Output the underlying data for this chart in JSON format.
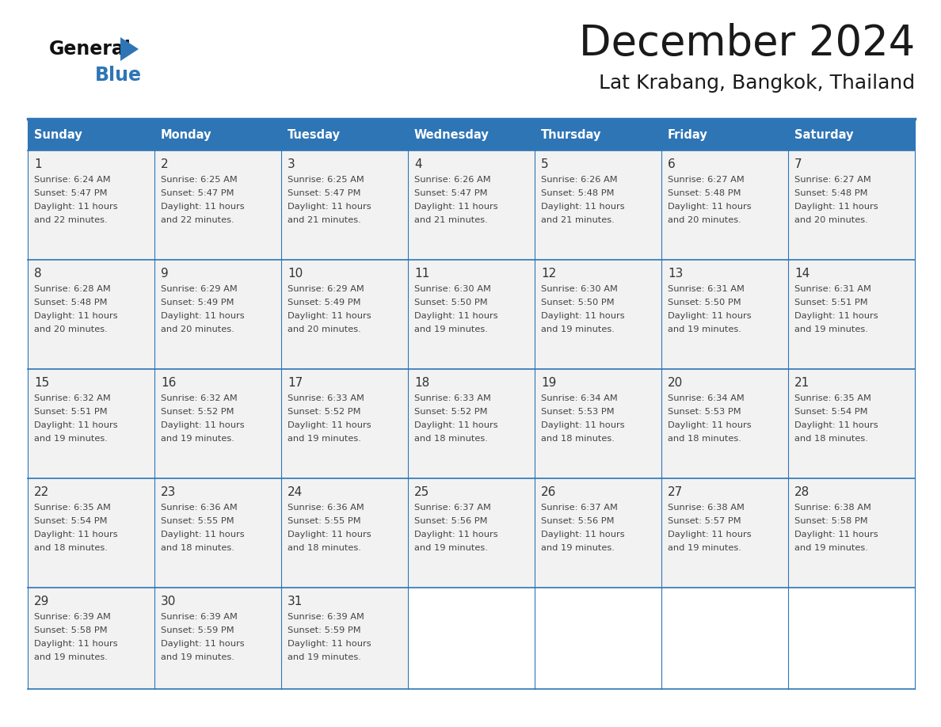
{
  "title": "December 2024",
  "subtitle": "Lat Krabang, Bangkok, Thailand",
  "header_bg": "#2E75B6",
  "header_text_color": "#FFFFFF",
  "cell_bg": "#F2F2F2",
  "border_color": "#2E75B6",
  "text_color": "#333333",
  "days_of_week": [
    "Sunday",
    "Monday",
    "Tuesday",
    "Wednesday",
    "Thursday",
    "Friday",
    "Saturday"
  ],
  "calendar_data": [
    [
      {
        "day": 1,
        "sunrise": "6:24 AM",
        "sunset": "5:47 PM",
        "daylight": "11 hours and 22 minutes."
      },
      {
        "day": 2,
        "sunrise": "6:25 AM",
        "sunset": "5:47 PM",
        "daylight": "11 hours and 22 minutes."
      },
      {
        "day": 3,
        "sunrise": "6:25 AM",
        "sunset": "5:47 PM",
        "daylight": "11 hours and 21 minutes."
      },
      {
        "day": 4,
        "sunrise": "6:26 AM",
        "sunset": "5:47 PM",
        "daylight": "11 hours and 21 minutes."
      },
      {
        "day": 5,
        "sunrise": "6:26 AM",
        "sunset": "5:48 PM",
        "daylight": "11 hours and 21 minutes."
      },
      {
        "day": 6,
        "sunrise": "6:27 AM",
        "sunset": "5:48 PM",
        "daylight": "11 hours and 20 minutes."
      },
      {
        "day": 7,
        "sunrise": "6:27 AM",
        "sunset": "5:48 PM",
        "daylight": "11 hours and 20 minutes."
      }
    ],
    [
      {
        "day": 8,
        "sunrise": "6:28 AM",
        "sunset": "5:48 PM",
        "daylight": "11 hours and 20 minutes."
      },
      {
        "day": 9,
        "sunrise": "6:29 AM",
        "sunset": "5:49 PM",
        "daylight": "11 hours and 20 minutes."
      },
      {
        "day": 10,
        "sunrise": "6:29 AM",
        "sunset": "5:49 PM",
        "daylight": "11 hours and 20 minutes."
      },
      {
        "day": 11,
        "sunrise": "6:30 AM",
        "sunset": "5:50 PM",
        "daylight": "11 hours and 19 minutes."
      },
      {
        "day": 12,
        "sunrise": "6:30 AM",
        "sunset": "5:50 PM",
        "daylight": "11 hours and 19 minutes."
      },
      {
        "day": 13,
        "sunrise": "6:31 AM",
        "sunset": "5:50 PM",
        "daylight": "11 hours and 19 minutes."
      },
      {
        "day": 14,
        "sunrise": "6:31 AM",
        "sunset": "5:51 PM",
        "daylight": "11 hours and 19 minutes."
      }
    ],
    [
      {
        "day": 15,
        "sunrise": "6:32 AM",
        "sunset": "5:51 PM",
        "daylight": "11 hours and 19 minutes."
      },
      {
        "day": 16,
        "sunrise": "6:32 AM",
        "sunset": "5:52 PM",
        "daylight": "11 hours and 19 minutes."
      },
      {
        "day": 17,
        "sunrise": "6:33 AM",
        "sunset": "5:52 PM",
        "daylight": "11 hours and 19 minutes."
      },
      {
        "day": 18,
        "sunrise": "6:33 AM",
        "sunset": "5:52 PM",
        "daylight": "11 hours and 18 minutes."
      },
      {
        "day": 19,
        "sunrise": "6:34 AM",
        "sunset": "5:53 PM",
        "daylight": "11 hours and 18 minutes."
      },
      {
        "day": 20,
        "sunrise": "6:34 AM",
        "sunset": "5:53 PM",
        "daylight": "11 hours and 18 minutes."
      },
      {
        "day": 21,
        "sunrise": "6:35 AM",
        "sunset": "5:54 PM",
        "daylight": "11 hours and 18 minutes."
      }
    ],
    [
      {
        "day": 22,
        "sunrise": "6:35 AM",
        "sunset": "5:54 PM",
        "daylight": "11 hours and 18 minutes."
      },
      {
        "day": 23,
        "sunrise": "6:36 AM",
        "sunset": "5:55 PM",
        "daylight": "11 hours and 18 minutes."
      },
      {
        "day": 24,
        "sunrise": "6:36 AM",
        "sunset": "5:55 PM",
        "daylight": "11 hours and 18 minutes."
      },
      {
        "day": 25,
        "sunrise": "6:37 AM",
        "sunset": "5:56 PM",
        "daylight": "11 hours and 19 minutes."
      },
      {
        "day": 26,
        "sunrise": "6:37 AM",
        "sunset": "5:56 PM",
        "daylight": "11 hours and 19 minutes."
      },
      {
        "day": 27,
        "sunrise": "6:38 AM",
        "sunset": "5:57 PM",
        "daylight": "11 hours and 19 minutes."
      },
      {
        "day": 28,
        "sunrise": "6:38 AM",
        "sunset": "5:58 PM",
        "daylight": "11 hours and 19 minutes."
      }
    ],
    [
      {
        "day": 29,
        "sunrise": "6:39 AM",
        "sunset": "5:58 PM",
        "daylight": "11 hours and 19 minutes."
      },
      {
        "day": 30,
        "sunrise": "6:39 AM",
        "sunset": "5:59 PM",
        "daylight": "11 hours and 19 minutes."
      },
      {
        "day": 31,
        "sunrise": "6:39 AM",
        "sunset": "5:59 PM",
        "daylight": "11 hours and 19 minutes."
      },
      null,
      null,
      null,
      null
    ]
  ]
}
